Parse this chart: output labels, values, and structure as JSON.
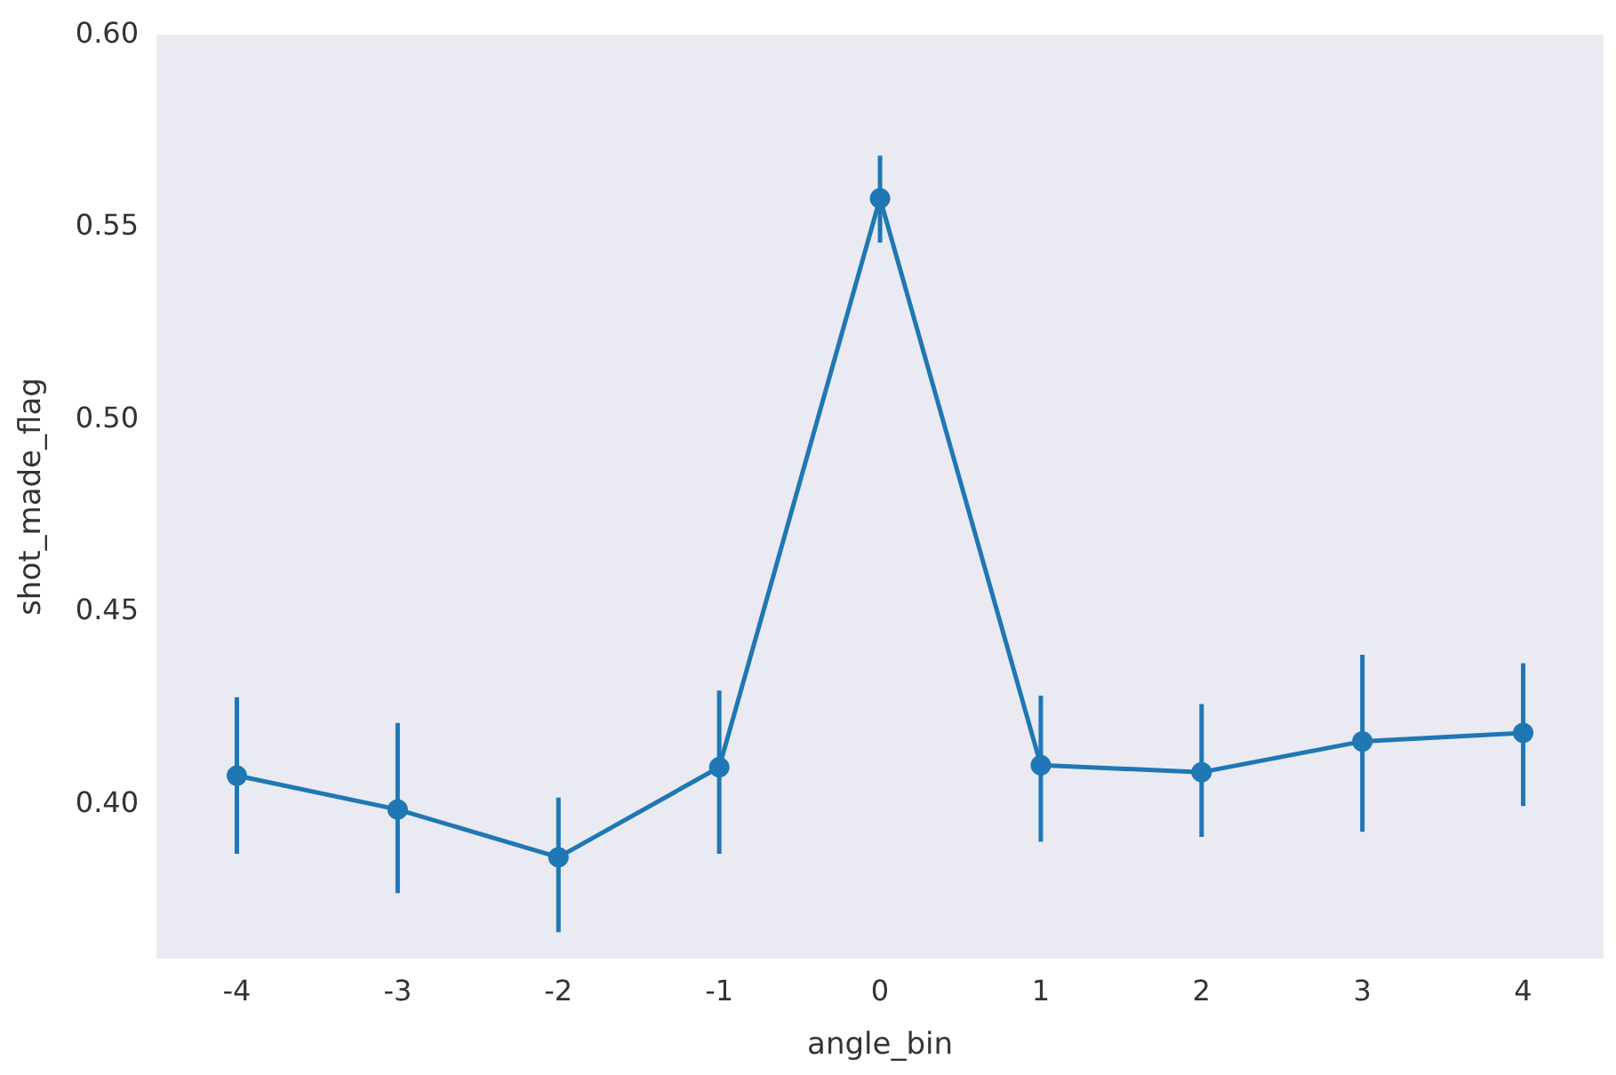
{
  "chart_data": {
    "type": "line",
    "xlabel": "angle_bin",
    "ylabel": "shot_made_flag",
    "categories": [
      "-4",
      "-3",
      "-2",
      "-1",
      "0",
      "1",
      "2",
      "3",
      "4"
    ],
    "series": [
      {
        "color": "#1f77b4",
        "values": [
          0.4075,
          0.3987,
          0.3863,
          0.4097,
          0.5575,
          0.4102,
          0.4084,
          0.4164,
          0.4186
        ],
        "errors": [
          [
            0.3872,
            0.4279
          ],
          [
            0.377,
            0.4212
          ],
          [
            0.3668,
            0.4018
          ],
          [
            0.3872,
            0.4296
          ],
          [
            0.546,
            0.5686
          ],
          [
            0.3903,
            0.4283
          ],
          [
            0.3916,
            0.4261
          ],
          [
            0.3929,
            0.4389
          ],
          [
            0.3996,
            0.4367
          ]
        ]
      }
    ],
    "ylim": [
      0.36,
      0.6
    ],
    "yticks": [
      {
        "value": 0.4,
        "label": "0.40"
      },
      {
        "value": 0.45,
        "label": "0.45"
      },
      {
        "value": 0.5,
        "label": "0.50"
      },
      {
        "value": 0.55,
        "label": "0.55"
      },
      {
        "value": 0.6,
        "label": "0.60"
      }
    ],
    "grid": false,
    "legend": false,
    "marker": "circle",
    "line_style": "solid"
  }
}
